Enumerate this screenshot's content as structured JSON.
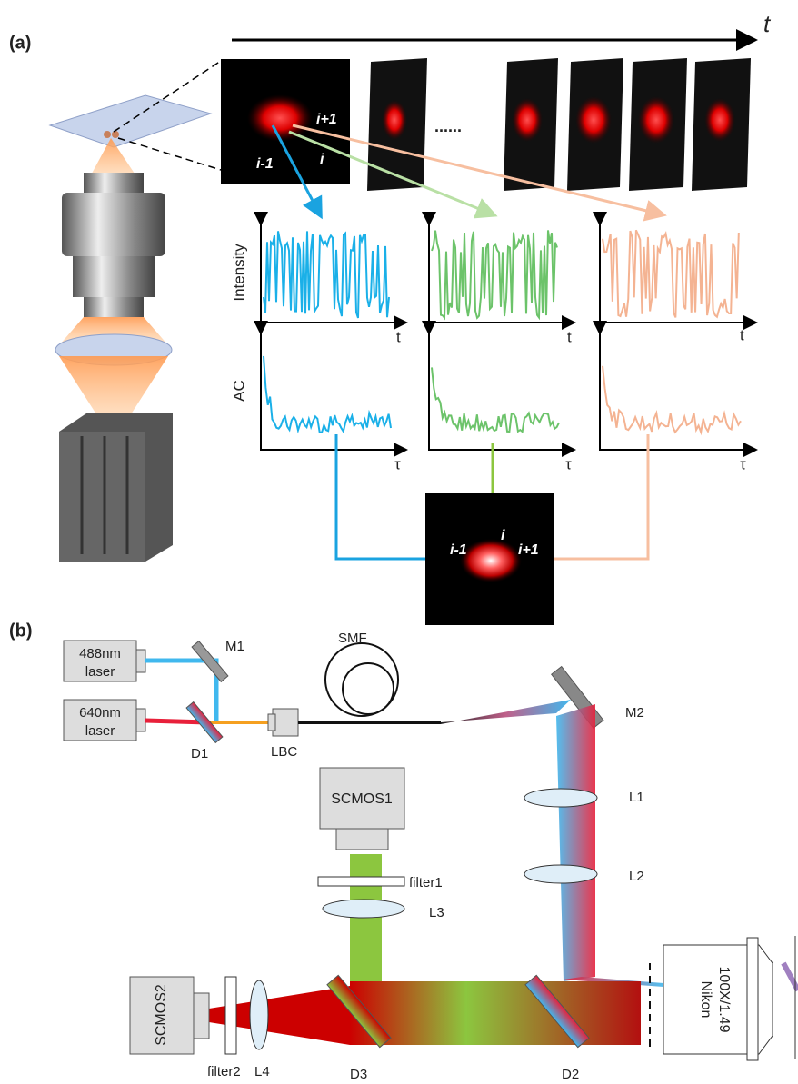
{
  "panel_a": {
    "label": "(a)",
    "time_axis": "t",
    "frame_labels": [
      "i-1",
      "i",
      "i+1"
    ],
    "ellipsis": "......",
    "intensity_label": "Intensity",
    "ac_label": "AC",
    "intensity_x": [
      "t",
      "t",
      "t"
    ],
    "ac_x": [
      "τ",
      "τ",
      "τ"
    ],
    "result_labels": [
      "i-1",
      "i",
      "i+1"
    ]
  },
  "panel_b": {
    "label": "(b)",
    "laser_488": [
      "488nm",
      "laser"
    ],
    "laser_640": [
      "640nm",
      "laser"
    ],
    "m1": "M1",
    "d1": "D1",
    "lbc": "LBC",
    "smf": "SMF",
    "m2": "M2",
    "l1": "L1",
    "l2": "L2",
    "scmos1": "SCMOS1",
    "filter1": "filter1",
    "l3": "L3",
    "scmos2": "SCMOS2",
    "filter2": "filter2",
    "l4": "L4",
    "d3": "D3",
    "d2": "D2",
    "objective": [
      "Nikon",
      "100X/1.49"
    ]
  }
}
